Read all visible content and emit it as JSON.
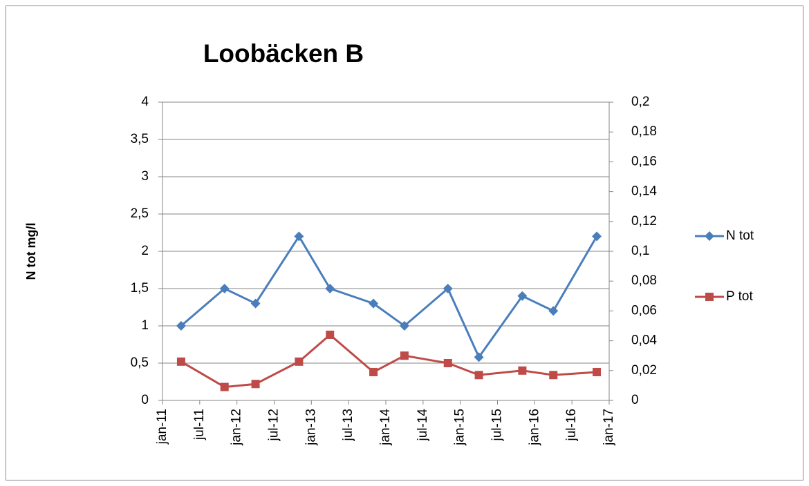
{
  "chart_data": {
    "type": "line",
    "title": "Loobäcken B",
    "ylabel": "N tot mg/l",
    "x": [
      "2011-04",
      "2011-11",
      "2012-04",
      "2012-11",
      "2013-04",
      "2013-11",
      "2014-04",
      "2014-11",
      "2015-04",
      "2015-11",
      "2016-04",
      "2016-11"
    ],
    "series": [
      {
        "name": "N tot",
        "color": "#4a7ebb",
        "marker": "diamond",
        "values": [
          1,
          1.5,
          1.3,
          2.2,
          1.5,
          1.3,
          1,
          1.5,
          0.58,
          1.4,
          1.2,
          2.2
        ]
      },
      {
        "name": "P tot",
        "color": "#be4b48",
        "marker": "square",
        "axis": "y2",
        "values": [
          0.026,
          0.009,
          0.011,
          0.026,
          0.044,
          0.019,
          0.03,
          0.025,
          0.017,
          0.02,
          0.017,
          0.019
        ]
      }
    ],
    "xlim": [
      "2011-01",
      "2017-01"
    ],
    "xticks": [
      {
        "value": "2011-01",
        "label": "jan-11"
      },
      {
        "value": "2011-07",
        "label": "jul-11"
      },
      {
        "value": "2012-01",
        "label": "jan-12"
      },
      {
        "value": "2012-07",
        "label": "jul-12"
      },
      {
        "value": "2013-01",
        "label": "jan-13"
      },
      {
        "value": "2013-07",
        "label": "jul-13"
      },
      {
        "value": "2014-01",
        "label": "jan-14"
      },
      {
        "value": "2014-07",
        "label": "jul-14"
      },
      {
        "value": "2015-01",
        "label": "jan-15"
      },
      {
        "value": "2015-07",
        "label": "jul-15"
      },
      {
        "value": "2016-01",
        "label": "jan-16"
      },
      {
        "value": "2016-07",
        "label": "jul-16"
      },
      {
        "value": "2017-01",
        "label": "jan-17"
      }
    ],
    "ylim": [
      0,
      4
    ],
    "yticks": [
      0,
      {
        "value": 0.5,
        "label": "0,5"
      },
      1,
      {
        "value": 1.5,
        "label": "1,5"
      },
      2,
      {
        "value": 2.5,
        "label": "2,5"
      },
      3,
      {
        "value": 3.5,
        "label": "3,5"
      },
      4
    ],
    "y2lim": [
      0,
      0.2
    ],
    "y2ticks": [
      0,
      {
        "value": 0.02,
        "label": "0,02"
      },
      {
        "value": 0.04,
        "label": "0,04"
      },
      {
        "value": 0.06,
        "label": "0,06"
      },
      {
        "value": 0.08,
        "label": "0,08"
      },
      {
        "value": 0.1,
        "label": "0,1"
      },
      {
        "value": 0.12,
        "label": "0,12"
      },
      {
        "value": 0.14,
        "label": "0,14"
      },
      {
        "value": 0.16,
        "label": "0,16"
      },
      {
        "value": 0.18,
        "label": "0,18"
      },
      {
        "value": 0.2,
        "label": "0,2"
      }
    ],
    "grid": true,
    "legend": "right"
  }
}
